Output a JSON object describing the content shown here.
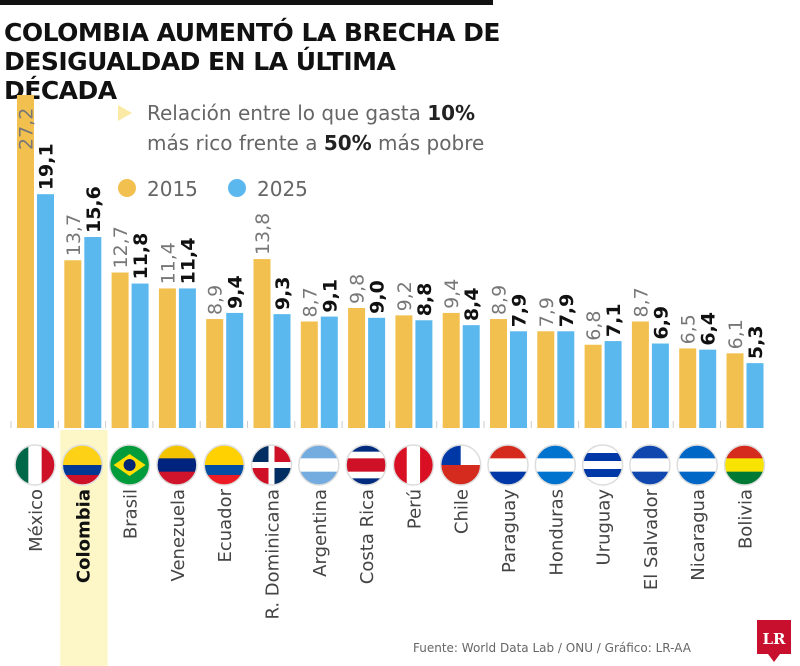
{
  "chart_data": {
    "type": "bar",
    "title": "COLOMBIA AUMENTÓ LA BRECHA DE DESIGUALDAD EN LA ÚLTIMA DÉCADA",
    "subtitle_parts": [
      "Relación entre lo que gasta ",
      "10%",
      " más rico frente a ",
      "50%",
      " más pobre"
    ],
    "categories": [
      "México",
      "Colombia",
      "Brasil",
      "Venezuela",
      "Ecuador",
      "R. Dominicana",
      "Argentina",
      "Costa Rica",
      "Perú",
      "Chile",
      "Paraguay",
      "Honduras",
      "Uruguay",
      "El Salvador",
      "Nicaragua",
      "Bolivia"
    ],
    "highlight": "Colombia",
    "series": [
      {
        "name": "2015",
        "color": "#f2c04f",
        "values": [
          27.2,
          13.7,
          12.7,
          11.4,
          8.9,
          13.8,
          8.7,
          9.8,
          9.2,
          9.4,
          8.9,
          7.9,
          6.8,
          8.7,
          6.5,
          6.1
        ]
      },
      {
        "name": "2025",
        "color": "#5bb8ee",
        "values": [
          19.1,
          15.6,
          11.8,
          11.4,
          9.4,
          9.3,
          9.1,
          9.0,
          8.8,
          8.4,
          7.9,
          7.9,
          7.1,
          6.9,
          6.4,
          5.3
        ]
      }
    ],
    "ylim": [
      0,
      27.2
    ],
    "grid": false,
    "legend_placement": "top-right",
    "decimal_separator": ",",
    "source": "Fuente: World Data Lab / ONU / Gráfico: LR-AA"
  },
  "logo_text": "LR",
  "highlight_color": "#fdf7c8",
  "flags": [
    {
      "stripes": [
        "#006847",
        "#ffffff",
        "#ce1126"
      ],
      "dir": "v"
    },
    {
      "stripes": [
        "#fcd116",
        "#fcd116",
        "#003893",
        "#ce1126"
      ],
      "dir": "h"
    },
    {
      "stripes": [
        "#009c3b"
      ],
      "dir": "h",
      "emblem": "diamond"
    },
    {
      "stripes": [
        "#f4c300",
        "#00247d",
        "#cf142b"
      ],
      "dir": "h"
    },
    {
      "stripes": [
        "#ffd100",
        "#ffd100",
        "#034ea2",
        "#ed1c24"
      ],
      "dir": "h"
    },
    {
      "stripes": [
        "#002d62",
        "#ce1126"
      ],
      "dir": "cross"
    },
    {
      "stripes": [
        "#74acdf",
        "#ffffff",
        "#74acdf"
      ],
      "dir": "h"
    },
    {
      "stripes": [
        "#002b7f",
        "#ffffff",
        "#ce1126",
        "#ce1126",
        "#ffffff",
        "#002b7f"
      ],
      "dir": "h"
    },
    {
      "stripes": [
        "#d91023",
        "#ffffff",
        "#d91023"
      ],
      "dir": "v"
    },
    {
      "stripes": [
        "#ffffff",
        "#d52b1e"
      ],
      "dir": "chile"
    },
    {
      "stripes": [
        "#d52b1e",
        "#ffffff",
        "#0038a8"
      ],
      "dir": "h"
    },
    {
      "stripes": [
        "#0073cf",
        "#ffffff",
        "#0073cf"
      ],
      "dir": "h"
    },
    {
      "stripes": [
        "#ffffff",
        "#0038a8",
        "#ffffff",
        "#0038a8",
        "#ffffff"
      ],
      "dir": "h"
    },
    {
      "stripes": [
        "#0f47af",
        "#ffffff",
        "#0f47af"
      ],
      "dir": "h"
    },
    {
      "stripes": [
        "#0067c6",
        "#ffffff",
        "#0067c6"
      ],
      "dir": "h"
    },
    {
      "stripes": [
        "#d52b1e",
        "#f9e300",
        "#007934"
      ],
      "dir": "h"
    }
  ]
}
